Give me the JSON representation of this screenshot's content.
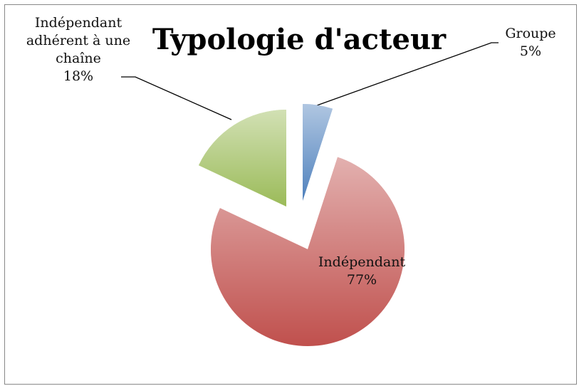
{
  "chart_data": {
    "type": "pie",
    "title": "Typologie d'acteur",
    "categories": [
      "Groupe",
      "Indépendant",
      "Indépendant adhérent à une chaîne"
    ],
    "values": [
      5,
      77,
      18
    ],
    "value_labels": [
      "5%",
      "77%",
      "18%"
    ],
    "colors": [
      "#4f81bd",
      "#c0504d",
      "#9bbb59"
    ]
  }
}
